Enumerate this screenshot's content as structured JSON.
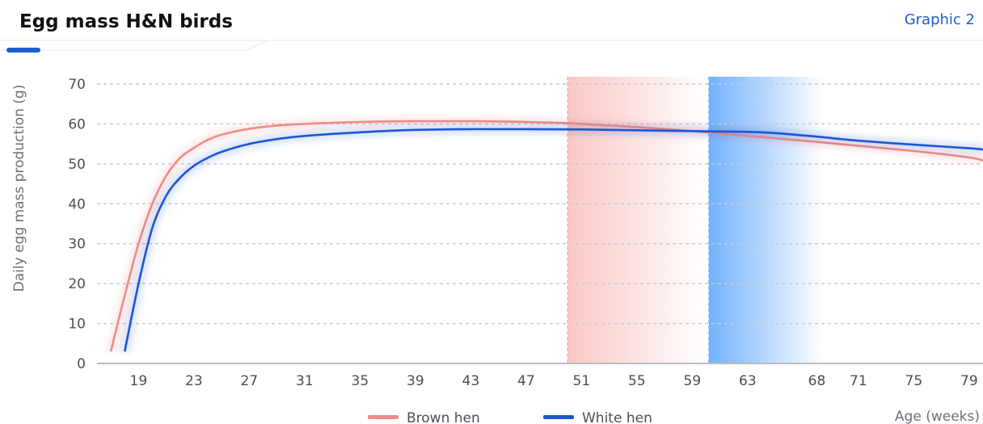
{
  "header": {
    "title": "Egg mass H&N birds",
    "graphic_link": "Graphic 2"
  },
  "colors": {
    "brown_series": "#f08c86",
    "white_series": "#1c56d6",
    "accent": "#1a5fd1",
    "grid": "#c9ccd1"
  },
  "chart_data": {
    "type": "line",
    "title": "",
    "xlabel": "Age (weeks)",
    "ylabel": "Daily egg mass production (g)",
    "ylim": [
      0,
      70
    ],
    "yticks": [
      0,
      10,
      20,
      30,
      40,
      50,
      60,
      70
    ],
    "xlim": [
      16,
      80
    ],
    "xticks": [
      19,
      23,
      27,
      31,
      35,
      39,
      43,
      47,
      51,
      55,
      59,
      63,
      68,
      71,
      75,
      79
    ],
    "grid": "horizontal dashed",
    "legend_position": "bottom-center",
    "series": [
      {
        "name": "Brown hen",
        "color": "#f08c86",
        "x": [
          17,
          18,
          19,
          20,
          21,
          22,
          23,
          24,
          25,
          27,
          29,
          31,
          35,
          39,
          43,
          47,
          50,
          51,
          55,
          59,
          61,
          63,
          68,
          71,
          75,
          79,
          80
        ],
        "y": [
          3,
          17,
          30,
          40,
          47,
          51.5,
          54,
          56,
          57.3,
          58.8,
          59.6,
          60,
          60.5,
          60.7,
          60.7,
          60.5,
          60.2,
          60,
          59.2,
          58.2,
          57.6,
          57,
          55.5,
          54.5,
          53.2,
          51.6,
          50.8
        ]
      },
      {
        "name": "White hen",
        "color": "#1c56d6",
        "x": [
          18,
          19,
          20,
          21,
          22,
          23,
          24,
          25,
          27,
          29,
          31,
          35,
          39,
          43,
          47,
          51,
          55,
          59,
          61,
          63,
          65,
          68,
          71,
          75,
          79,
          80
        ],
        "y": [
          3,
          20,
          34,
          42,
          46.5,
          49.5,
          51.5,
          53,
          55,
          56.2,
          57,
          57.9,
          58.5,
          58.7,
          58.7,
          58.6,
          58.4,
          58.2,
          58.1,
          58,
          57.7,
          56.8,
          55.8,
          54.8,
          53.9,
          53.6
        ]
      }
    ],
    "highlight_bands": [
      {
        "series": "Brown hen",
        "x_start": 50,
        "x_end": 60,
        "color": "#f7b6b2"
      },
      {
        "series": "White hen",
        "x_start": 60.2,
        "x_end": 68.5,
        "color": "#6fb0ff"
      }
    ]
  }
}
